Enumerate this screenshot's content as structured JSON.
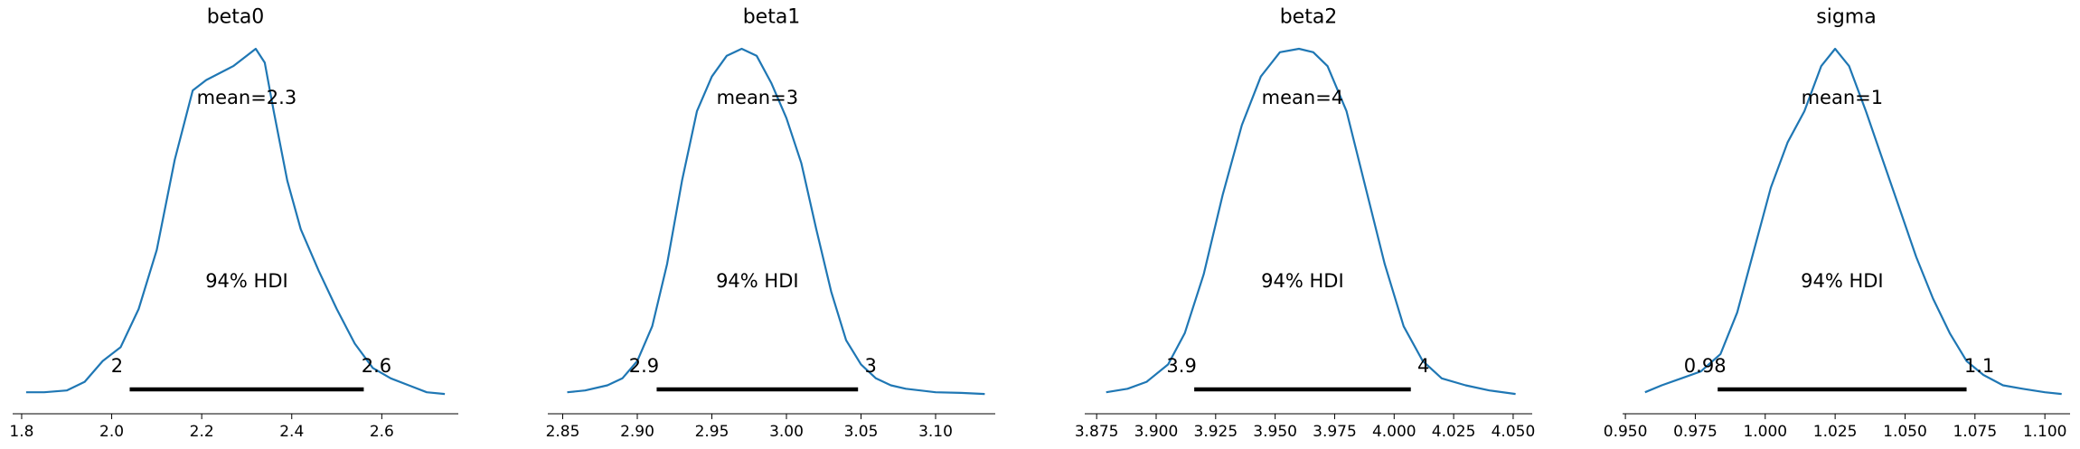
{
  "chart_data": [
    {
      "type": "line",
      "title": "beta0",
      "mean_label": "mean=2.3",
      "hdi_label": "94% HDI",
      "hdi_low_label": "2",
      "hdi_high_label": "2.6",
      "hdi": [
        2.04,
        2.56
      ],
      "xlim": [
        1.78,
        2.77
      ],
      "ticks": [
        1.8,
        2.0,
        2.2,
        2.4,
        2.6
      ],
      "tick_labels": [
        "1.8",
        "2.0",
        "2.2",
        "2.4",
        "2.6"
      ],
      "x": [
        1.81,
        1.85,
        1.9,
        1.94,
        1.98,
        2.02,
        2.06,
        2.1,
        2.14,
        2.18,
        2.21,
        2.24,
        2.27,
        2.3,
        2.32,
        2.34,
        2.36,
        2.39,
        2.42,
        2.46,
        2.5,
        2.54,
        2.58,
        2.62,
        2.66,
        2.7,
        2.74
      ],
      "y": [
        0.01,
        0.01,
        0.015,
        0.04,
        0.1,
        0.14,
        0.25,
        0.42,
        0.68,
        0.88,
        0.91,
        0.93,
        0.95,
        0.98,
        1.0,
        0.96,
        0.82,
        0.62,
        0.48,
        0.36,
        0.25,
        0.15,
        0.08,
        0.05,
        0.03,
        0.01,
        0.005
      ],
      "color": "#1f77b4"
    },
    {
      "type": "line",
      "title": "beta1",
      "mean_label": "mean=3",
      "hdi_label": "94% HDI",
      "hdi_low_label": "2.9",
      "hdi_high_label": "3",
      "hdi": [
        2.913,
        3.048
      ],
      "xlim": [
        2.84,
        3.14
      ],
      "ticks": [
        2.85,
        2.9,
        2.95,
        3.0,
        3.05,
        3.1
      ],
      "tick_labels": [
        "2.85",
        "2.90",
        "2.95",
        "3.00",
        "3.05",
        "3.10"
      ],
      "x": [
        2.853,
        2.865,
        2.88,
        2.89,
        2.9,
        2.91,
        2.92,
        2.93,
        2.94,
        2.95,
        2.96,
        2.97,
        2.98,
        2.99,
        3.0,
        3.01,
        3.02,
        3.03,
        3.04,
        3.05,
        3.06,
        3.07,
        3.08,
        3.1,
        3.117,
        3.133
      ],
      "y": [
        0.01,
        0.015,
        0.03,
        0.05,
        0.1,
        0.2,
        0.38,
        0.62,
        0.82,
        0.92,
        0.98,
        1.0,
        0.98,
        0.9,
        0.8,
        0.67,
        0.48,
        0.3,
        0.16,
        0.09,
        0.05,
        0.03,
        0.02,
        0.01,
        0.008,
        0.005
      ],
      "color": "#1f77b4"
    },
    {
      "type": "line",
      "title": "beta2",
      "mean_label": "mean=4",
      "hdi_label": "94% HDI",
      "hdi_low_label": "3.9",
      "hdi_high_label": "4",
      "hdi": [
        3.916,
        4.007
      ],
      "xlim": [
        3.87,
        4.058
      ],
      "ticks": [
        3.875,
        3.9,
        3.925,
        3.95,
        3.975,
        4.0,
        4.025,
        4.05
      ],
      "tick_labels": [
        "3.875",
        "3.900",
        "3.925",
        "3.950",
        "3.975",
        "4.000",
        "4.025",
        "4.050"
      ],
      "x": [
        3.879,
        3.888,
        3.896,
        3.905,
        3.912,
        3.92,
        3.928,
        3.936,
        3.944,
        3.952,
        3.96,
        3.966,
        3.972,
        3.98,
        3.988,
        3.996,
        4.004,
        4.012,
        4.02,
        4.03,
        4.04,
        4.051
      ],
      "y": [
        0.01,
        0.02,
        0.04,
        0.09,
        0.18,
        0.35,
        0.58,
        0.78,
        0.92,
        0.99,
        1.0,
        0.99,
        0.95,
        0.82,
        0.6,
        0.38,
        0.2,
        0.1,
        0.05,
        0.03,
        0.015,
        0.005
      ],
      "color": "#1f77b4"
    },
    {
      "type": "line",
      "title": "sigma",
      "mean_label": "mean=1",
      "hdi_label": "94% HDI",
      "hdi_low_label": "0.98",
      "hdi_high_label": "1.1",
      "hdi": [
        0.983,
        1.072
      ],
      "xlim": [
        0.949,
        1.109
      ],
      "ticks": [
        0.95,
        0.975,
        1.0,
        1.025,
        1.05,
        1.075,
        1.1
      ],
      "tick_labels": [
        "0.950",
        "0.975",
        "1.000",
        "1.025",
        "1.050",
        "1.075",
        "1.100"
      ],
      "x": [
        0.957,
        0.963,
        0.97,
        0.977,
        0.984,
        0.99,
        0.996,
        1.002,
        1.008,
        1.014,
        1.02,
        1.025,
        1.03,
        1.036,
        1.042,
        1.048,
        1.054,
        1.06,
        1.066,
        1.072,
        1.078,
        1.085,
        1.092,
        1.1,
        1.106
      ],
      "y": [
        0.01,
        0.03,
        0.05,
        0.07,
        0.12,
        0.24,
        0.42,
        0.6,
        0.73,
        0.82,
        0.95,
        1.0,
        0.95,
        0.82,
        0.68,
        0.54,
        0.4,
        0.28,
        0.18,
        0.1,
        0.06,
        0.03,
        0.02,
        0.01,
        0.005
      ],
      "color": "#1f77b4"
    }
  ]
}
